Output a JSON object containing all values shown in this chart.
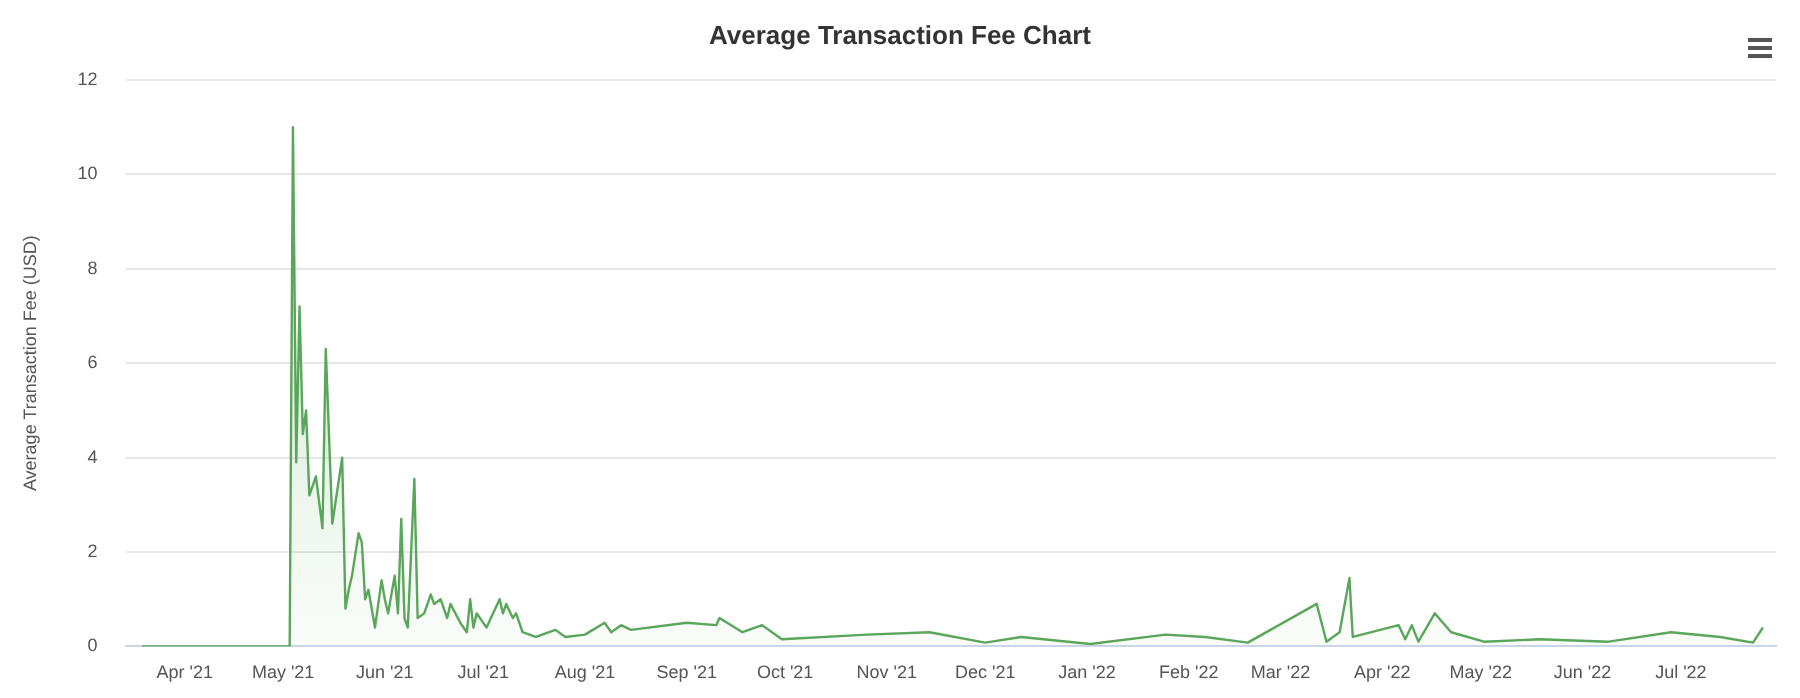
{
  "chart_data": {
    "type": "area",
    "title": "Average Transaction Fee Chart",
    "ylabel": "Average Transaction Fee (USD)",
    "x": [
      "2021-03-19",
      "2021-05-03",
      "2021-05-04",
      "2021-05-05",
      "2021-05-06",
      "2021-05-07",
      "2021-05-08",
      "2021-05-09",
      "2021-05-11",
      "2021-05-13",
      "2021-05-14",
      "2021-05-16",
      "2021-05-19",
      "2021-05-20",
      "2021-05-21",
      "2021-05-22",
      "2021-05-24",
      "2021-05-25",
      "2021-05-26",
      "2021-05-27",
      "2021-05-29",
      "2021-05-31",
      "2021-06-01",
      "2021-06-02",
      "2021-06-04",
      "2021-06-05",
      "2021-06-06",
      "2021-06-07",
      "2021-06-08",
      "2021-06-10",
      "2021-06-11",
      "2021-06-13",
      "2021-06-15",
      "2021-06-16",
      "2021-06-18",
      "2021-06-20",
      "2021-06-21",
      "2021-06-24",
      "2021-06-26",
      "2021-06-27",
      "2021-06-28",
      "2021-06-29",
      "2021-07-02",
      "2021-07-04",
      "2021-07-06",
      "2021-07-07",
      "2021-07-08",
      "2021-07-10",
      "2021-07-11",
      "2021-07-13",
      "2021-07-17",
      "2021-07-23",
      "2021-07-26",
      "2021-08-01",
      "2021-08-07",
      "2021-08-09",
      "2021-08-12",
      "2021-08-15",
      "2021-09-01",
      "2021-09-10",
      "2021-09-11",
      "2021-09-18",
      "2021-09-24",
      "2021-09-30",
      "2021-10-26",
      "2021-11-14",
      "2021-12-01",
      "2021-12-12",
      "2022-01-02",
      "2022-01-25",
      "2022-02-06",
      "2022-02-19",
      "2022-03-12",
      "2022-03-15",
      "2022-03-19",
      "2022-03-22",
      "2022-03-23",
      "2022-04-06",
      "2022-04-08",
      "2022-04-10",
      "2022-04-12",
      "2022-04-17",
      "2022-04-22",
      "2022-05-02",
      "2022-05-19",
      "2022-06-09",
      "2022-06-28",
      "2022-07-13",
      "2022-07-23",
      "2022-07-26"
    ],
    "series": [
      {
        "color": "#5aa65a",
        "values": [
          0,
          0,
          11.0,
          3.9,
          7.2,
          4.5,
          5.0,
          3.2,
          3.6,
          2.5,
          6.3,
          2.6,
          4.0,
          0.8,
          1.2,
          1.5,
          2.4,
          2.2,
          1.0,
          1.2,
          0.4,
          1.4,
          1.0,
          0.7,
          1.5,
          0.7,
          2.7,
          0.6,
          0.4,
          3.55,
          0.6,
          0.7,
          1.1,
          0.9,
          1.0,
          0.6,
          0.9,
          0.5,
          0.3,
          1.0,
          0.4,
          0.7,
          0.4,
          0.7,
          1.0,
          0.7,
          0.9,
          0.6,
          0.7,
          0.3,
          0.2,
          0.35,
          0.2,
          0.25,
          0.5,
          0.3,
          0.45,
          0.35,
          0.5,
          0.45,
          0.6,
          0.3,
          0.45,
          0.15,
          0.25,
          0.3,
          0.08,
          0.2,
          0.05,
          0.25,
          0.2,
          0.08,
          0.9,
          0.1,
          0.3,
          1.45,
          0.2,
          0.45,
          0.15,
          0.45,
          0.1,
          0.7,
          0.3,
          0.1,
          0.15,
          0.1,
          0.3,
          0.2,
          0.08,
          0.4
        ]
      }
    ],
    "xlim": [
      "2021-03-14",
      "2022-07-30"
    ],
    "xticks": [
      {
        "value": "2021-04-01",
        "label": "Apr '21"
      },
      {
        "value": "2021-05-01",
        "label": "May '21"
      },
      {
        "value": "2021-06-01",
        "label": "Jun '21"
      },
      {
        "value": "2021-07-01",
        "label": "Jul '21"
      },
      {
        "value": "2021-08-01",
        "label": "Aug '21"
      },
      {
        "value": "2021-09-01",
        "label": "Sep '21"
      },
      {
        "value": "2021-10-01",
        "label": "Oct '21"
      },
      {
        "value": "2021-11-01",
        "label": "Nov '21"
      },
      {
        "value": "2021-12-01",
        "label": "Dec '21"
      },
      {
        "value": "2022-01-01",
        "label": "Jan '22"
      },
      {
        "value": "2022-02-01",
        "label": "Feb '22"
      },
      {
        "value": "2022-03-01",
        "label": "Mar '22"
      },
      {
        "value": "2022-04-01",
        "label": "Apr '22"
      },
      {
        "value": "2022-05-01",
        "label": "May '22"
      },
      {
        "value": "2022-06-01",
        "label": "Jun '22"
      },
      {
        "value": "2022-07-01",
        "label": "Jul '22"
      }
    ],
    "ylim": [
      0,
      12
    ],
    "yticks": [
      0,
      2,
      4,
      6,
      8,
      10,
      12
    ],
    "grid": "y",
    "legend": false,
    "marker": "none",
    "line_style": "solid"
  }
}
